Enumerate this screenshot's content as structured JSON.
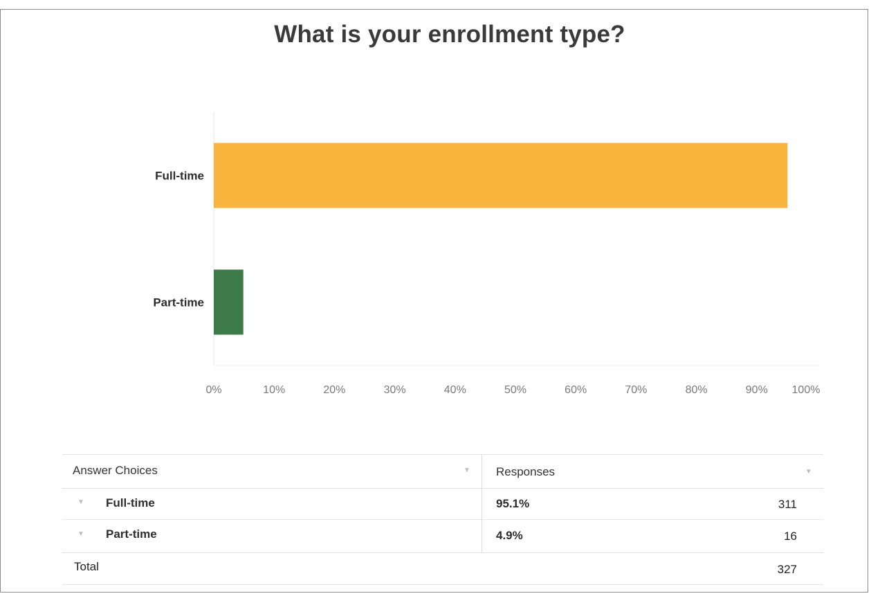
{
  "chart_data": {
    "type": "bar",
    "orientation": "horizontal",
    "title": "What is your enrollment type?",
    "categories": [
      "Full-time",
      "Part-time"
    ],
    "values": [
      95.1,
      4.9
    ],
    "colors": [
      "#f9b43e",
      "#3e7b4a"
    ],
    "xlim": [
      0,
      100
    ],
    "x_ticks": [
      "0%",
      "10%",
      "20%",
      "30%",
      "40%",
      "50%",
      "60%",
      "70%",
      "80%",
      "90%",
      "100%"
    ],
    "grid": false,
    "legend": "none"
  },
  "table": {
    "header": {
      "choices": "Answer Choices",
      "responses": "Responses"
    },
    "rows": [
      {
        "label": "Full-time",
        "percent": "95.1%",
        "count": "311"
      },
      {
        "label": "Part-time",
        "percent": "4.9%",
        "count": "16"
      }
    ],
    "total": {
      "label": "Total",
      "count": "327"
    }
  },
  "icons": {
    "sort": "chevron-down-icon",
    "expand": "chevron-down-icon"
  }
}
